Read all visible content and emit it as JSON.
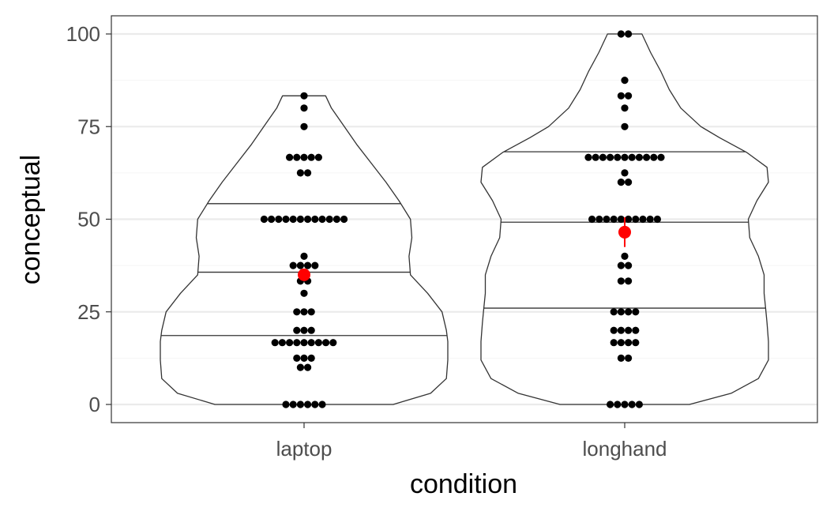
{
  "chart_data": {
    "type": "violin",
    "title": "",
    "xlabel": "condition",
    "ylabel": "conceptual",
    "categories": [
      "laptop",
      "longhand"
    ],
    "ylim": [
      -5,
      105
    ],
    "y_ticks": [
      0,
      25,
      50,
      75,
      100
    ],
    "y_tick_labels": [
      "0",
      "25",
      "50",
      "75",
      "100"
    ],
    "grid": true,
    "theme_colors": {
      "background": "#ffffff",
      "panel_border": "#333333",
      "grid_major": "#ebebeb",
      "grid_minor": "#f5f5f5",
      "violin_outline": "#333333",
      "point": "#000000",
      "mean": "#ff0000",
      "axis_text": "#4d4d4d",
      "axis_title": "#000000"
    },
    "groups": [
      {
        "category": "laptop",
        "min": 0,
        "max": 83.3,
        "quantiles": [
          18.6,
          35.7,
          54.2
        ],
        "mean": 35.0,
        "mean_ci": [
          33.5,
          36.5
        ],
        "density_profile": [
          [
            0,
            0.62
          ],
          [
            3,
            0.88
          ],
          [
            7,
            0.99
          ],
          [
            12,
            1.0
          ],
          [
            17,
            1.0
          ],
          [
            20,
            0.99
          ],
          [
            25,
            0.96
          ],
          [
            30,
            0.86
          ],
          [
            35,
            0.74
          ],
          [
            40,
            0.73
          ],
          [
            45,
            0.75
          ],
          [
            50,
            0.74
          ],
          [
            55,
            0.66
          ],
          [
            60,
            0.57
          ],
          [
            65,
            0.47
          ],
          [
            70,
            0.37
          ],
          [
            75,
            0.28
          ],
          [
            80,
            0.19
          ],
          [
            83.3,
            0.15
          ]
        ],
        "points": [
          {
            "y": 83.3,
            "n": 1
          },
          {
            "y": 80,
            "n": 1
          },
          {
            "y": 75,
            "n": 1
          },
          {
            "y": 66.7,
            "n": 5
          },
          {
            "y": 62.5,
            "n": 2
          },
          {
            "y": 50,
            "n": 12
          },
          {
            "y": 40,
            "n": 1
          },
          {
            "y": 37.5,
            "n": 4
          },
          {
            "y": 33.3,
            "n": 2
          },
          {
            "y": 30,
            "n": 1
          },
          {
            "y": 25,
            "n": 3
          },
          {
            "y": 20,
            "n": 3
          },
          {
            "y": 16.7,
            "n": 9
          },
          {
            "y": 12.5,
            "n": 3
          },
          {
            "y": 10,
            "n": 2
          },
          {
            "y": 0,
            "n": 6
          }
        ]
      },
      {
        "category": "longhand",
        "min": 0,
        "max": 100,
        "quantiles": [
          26.0,
          49.2,
          68.2
        ],
        "mean": 46.5,
        "mean_ci": [
          42.5,
          50.5
        ],
        "density_profile": [
          [
            0,
            0.45
          ],
          [
            3,
            0.74
          ],
          [
            7,
            0.93
          ],
          [
            12,
            1.0
          ],
          [
            17,
            1.0
          ],
          [
            22,
            0.99
          ],
          [
            26,
            0.98
          ],
          [
            30,
            0.97
          ],
          [
            35,
            0.97
          ],
          [
            40,
            0.93
          ],
          [
            45,
            0.87
          ],
          [
            50,
            0.86
          ],
          [
            55,
            0.92
          ],
          [
            60,
            1.0
          ],
          [
            64,
            0.99
          ],
          [
            68,
            0.85
          ],
          [
            72,
            0.66
          ],
          [
            75,
            0.53
          ],
          [
            80,
            0.39
          ],
          [
            85,
            0.31
          ],
          [
            90,
            0.25
          ],
          [
            95,
            0.18
          ],
          [
            100,
            0.12
          ]
        ],
        "points": [
          {
            "y": 100,
            "n": 2
          },
          {
            "y": 87.5,
            "n": 1
          },
          {
            "y": 83.3,
            "n": 2
          },
          {
            "y": 80,
            "n": 1
          },
          {
            "y": 75,
            "n": 1
          },
          {
            "y": 66.7,
            "n": 11
          },
          {
            "y": 62.5,
            "n": 1
          },
          {
            "y": 60,
            "n": 2
          },
          {
            "y": 50,
            "n": 10
          },
          {
            "y": 40,
            "n": 1
          },
          {
            "y": 37.5,
            "n": 2
          },
          {
            "y": 33.3,
            "n": 2
          },
          {
            "y": 25,
            "n": 4
          },
          {
            "y": 20,
            "n": 4
          },
          {
            "y": 16.7,
            "n": 4
          },
          {
            "y": 12.5,
            "n": 2
          },
          {
            "y": 0,
            "n": 5
          }
        ]
      }
    ]
  }
}
